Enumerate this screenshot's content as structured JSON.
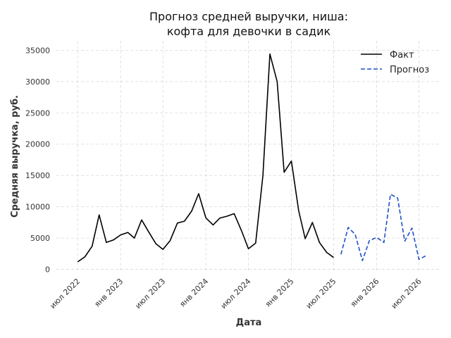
{
  "chart_data": {
    "type": "line",
    "title_line1": "Прогноз средней выручки, ниша:",
    "title_line2": "кофта для девочки в садик",
    "xlabel": "Дата",
    "ylabel": "Средняя выручка, руб.",
    "ylim": [
      -500,
      36500
    ],
    "yticks": [
      0,
      5000,
      10000,
      15000,
      20000,
      25000,
      30000,
      35000
    ],
    "xticks": [
      {
        "label": "июл 2022",
        "date": "2022-07-01"
      },
      {
        "label": "янв 2023",
        "date": "2023-01-01"
      },
      {
        "label": "июл 2023",
        "date": "2023-07-01"
      },
      {
        "label": "янв 2024",
        "date": "2024-01-01"
      },
      {
        "label": "июл 2024",
        "date": "2024-07-01"
      },
      {
        "label": "янв 2025",
        "date": "2025-01-01"
      },
      {
        "label": "июл 2025",
        "date": "2025-07-01"
      },
      {
        "label": "янв 2026",
        "date": "2026-01-01"
      },
      {
        "label": "июл 2026",
        "date": "2026-07-01"
      }
    ],
    "xlim": [
      "2022-04-01",
      "2026-10-01"
    ],
    "grid": true,
    "legend_position": "top-right",
    "series": [
      {
        "name": "Факт",
        "color": "#000000",
        "style": "solid",
        "x": [
          "2022-07-01",
          "2022-08-01",
          "2022-09-01",
          "2022-10-01",
          "2022-11-01",
          "2022-12-01",
          "2023-01-01",
          "2023-02-01",
          "2023-03-01",
          "2023-04-01",
          "2023-05-01",
          "2023-06-01",
          "2023-07-01",
          "2023-08-01",
          "2023-09-01",
          "2023-10-01",
          "2023-11-01",
          "2023-12-01",
          "2024-01-01",
          "2024-02-01",
          "2024-03-01",
          "2024-04-01",
          "2024-05-01",
          "2024-06-01",
          "2024-07-01",
          "2024-08-01",
          "2024-09-01",
          "2024-10-01",
          "2024-11-01",
          "2024-12-01",
          "2025-01-01",
          "2025-02-01",
          "2025-03-01",
          "2025-04-01",
          "2025-05-01",
          "2025-06-01",
          "2025-07-01"
        ],
        "y": [
          1200,
          2000,
          3700,
          8700,
          4300,
          4700,
          5500,
          5900,
          5000,
          7900,
          6000,
          4100,
          3200,
          4600,
          7400,
          7700,
          9300,
          12100,
          8200,
          7100,
          8200,
          8500,
          8900,
          6200,
          3300,
          4200,
          15000,
          34400,
          30000,
          15500,
          17300,
          9400,
          4900,
          7500,
          4300,
          2700,
          1900
        ]
      },
      {
        "name": "Прогноз",
        "color": "#1f4fc8",
        "style": "dashed",
        "x": [
          "2025-08-01",
          "2025-09-01",
          "2025-10-01",
          "2025-11-01",
          "2025-12-01",
          "2026-01-01",
          "2026-02-01",
          "2026-03-01",
          "2026-04-01",
          "2026-05-01",
          "2026-06-01",
          "2026-07-01",
          "2026-08-01"
        ],
        "y": [
          2400,
          6700,
          5600,
          1400,
          4600,
          5100,
          4300,
          12000,
          11400,
          4500,
          6600,
          1600,
          2200
        ]
      }
    ]
  }
}
